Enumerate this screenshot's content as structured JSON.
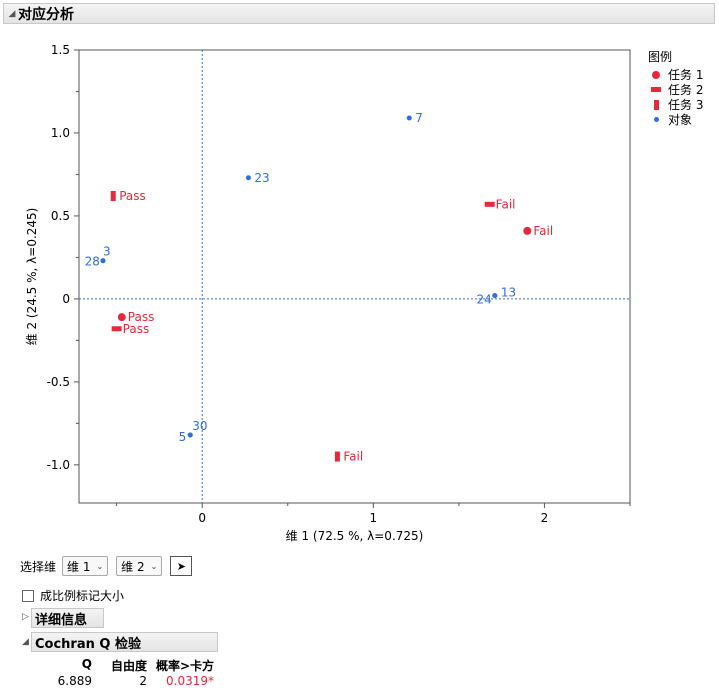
{
  "header": {
    "title": "对应分析"
  },
  "chart_data": {
    "type": "scatter",
    "xlabel": "维 1  (72.5 %, λ=0.725)",
    "ylabel": "维 2  (24.5 %, λ=0.245)",
    "xlim": [
      -0.72,
      2.5
    ],
    "ylim": [
      -1.23,
      1.5
    ],
    "x_ticks": [
      0,
      1,
      2
    ],
    "y_ticks": [
      1.5,
      1.0,
      0.5,
      0,
      -0.5,
      -1.0
    ],
    "grid": false,
    "reference_lines": {
      "x": 0,
      "y": 0
    },
    "legend": {
      "title": "图例",
      "placement": "right",
      "entries": [
        {
          "label": "任务 1",
          "marker": "circle",
          "color": "#e8283c"
        },
        {
          "label": "任务 2",
          "marker": "hbar",
          "color": "#e8283c"
        },
        {
          "label": "任务 3",
          "marker": "vbar",
          "color": "#e8283c"
        },
        {
          "label": "对象",
          "marker": "dot",
          "color": "#2f6fdd"
        }
      ]
    },
    "series": [
      {
        "name": "任务 1",
        "marker": "circle",
        "color": "#e8283c",
        "points": [
          {
            "x": 1.9,
            "y": 0.41,
            "label": "Fail"
          },
          {
            "x": -0.47,
            "y": -0.11,
            "label": "Pass"
          }
        ]
      },
      {
        "name": "任务 2",
        "marker": "hbar",
        "color": "#e8283c",
        "points": [
          {
            "x": 1.68,
            "y": 0.57,
            "label": "Fail"
          },
          {
            "x": -0.5,
            "y": -0.18,
            "label": "Pass"
          }
        ]
      },
      {
        "name": "任务 3",
        "marker": "vbar",
        "color": "#e8283c",
        "points": [
          {
            "x": -0.52,
            "y": 0.62,
            "label": "Pass"
          },
          {
            "x": 0.79,
            "y": -0.95,
            "label": "Fail"
          }
        ]
      },
      {
        "name": "对象",
        "marker": "dot",
        "color": "#2f6fdd",
        "points": [
          {
            "x": 1.21,
            "y": 1.09,
            "label": "7"
          },
          {
            "x": 0.27,
            "y": 0.73,
            "label": "23"
          },
          {
            "x": -0.58,
            "y": 0.23,
            "label": "3"
          },
          {
            "x": -0.58,
            "y": 0.23,
            "label": "28"
          },
          {
            "x": 1.71,
            "y": 0.02,
            "label": "13"
          },
          {
            "x": 1.71,
            "y": 0.02,
            "label": "24"
          },
          {
            "x": -0.07,
            "y": -0.82,
            "label": "30"
          },
          {
            "x": -0.07,
            "y": -0.82,
            "label": "5"
          }
        ]
      }
    ]
  },
  "controls": {
    "select_dim_label": "选择维",
    "dim_x": "维 1",
    "dim_y": "维 2",
    "scale_markers_label": "成比例标记大小"
  },
  "details": {
    "title": "详细信息"
  },
  "cochran": {
    "title": "Cochran Q 检验",
    "headers": [
      "Q",
      "自由度",
      "概率>卡方"
    ],
    "values": [
      "6.889",
      "2",
      "0.0319*"
    ]
  }
}
